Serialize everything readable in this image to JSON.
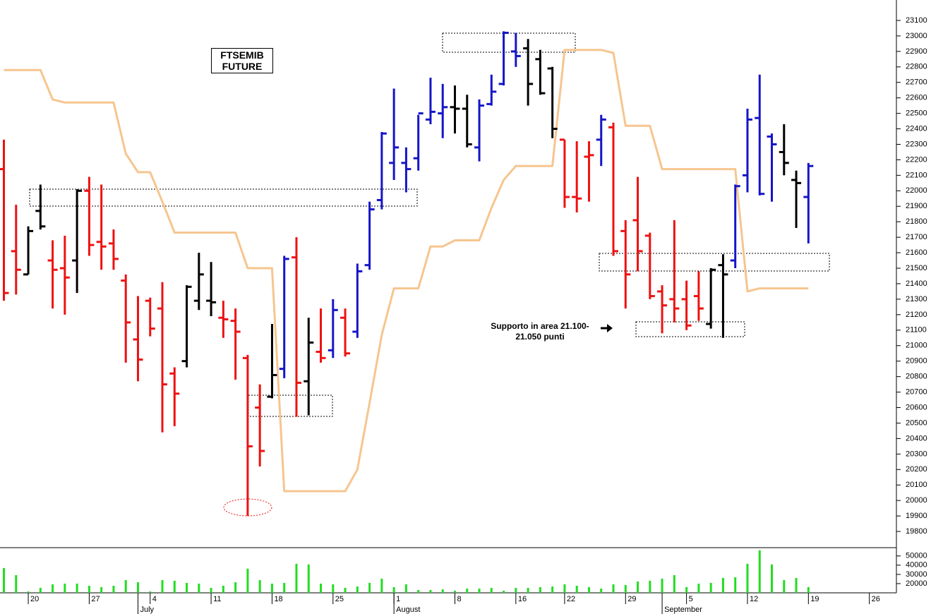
{
  "chart_data": [
    {
      "type": "ohlc",
      "title": "FTSEMIB FUTURE",
      "annotation": "Supporto in area 21.100-21.050 punti",
      "categories": [
        null,
        null,
        "20",
        null,
        null,
        null,
        null,
        "27",
        null,
        null,
        null,
        null,
        "4",
        null,
        null,
        null,
        null,
        "11",
        null,
        null,
        null,
        null,
        "18",
        null,
        null,
        null,
        null,
        "25",
        null,
        null,
        null,
        null,
        "1",
        null,
        null,
        null,
        null,
        "8",
        null,
        null,
        null,
        null,
        "16",
        null,
        null,
        null,
        "22",
        null,
        null,
        null,
        null,
        "29",
        null,
        null,
        null,
        null,
        "5",
        null,
        null,
        null,
        null,
        "12",
        null,
        null,
        null,
        null,
        "19",
        null,
        null,
        null,
        null,
        "26",
        null,
        null
      ],
      "months": [
        null,
        null,
        null,
        null,
        null,
        null,
        null,
        null,
        null,
        null,
        null,
        "July",
        null,
        null,
        null,
        null,
        null,
        null,
        null,
        null,
        null,
        null,
        null,
        null,
        null,
        null,
        null,
        null,
        null,
        null,
        null,
        null,
        "August",
        null,
        null,
        null,
        null,
        null,
        null,
        null,
        null,
        null,
        null,
        null,
        null,
        null,
        null,
        null,
        null,
        null,
        null,
        null,
        null,
        null,
        "September",
        null,
        null,
        null,
        null,
        null,
        null,
        null,
        null,
        null,
        null,
        null,
        null,
        null,
        null,
        null,
        null,
        null,
        null,
        null
      ],
      "open": [
        22140,
        21610,
        21460,
        21870,
        21550,
        21500,
        21550,
        22000,
        21670,
        21660,
        21420,
        21040,
        21290,
        21240,
        20820,
        20900,
        21290,
        21290,
        21180,
        21160,
        20920,
        20600,
        20670,
        20850,
        21570,
        20770,
        20960,
        20970,
        21180,
        21090,
        21520,
        21940,
        22180,
        22180,
        22210,
        22460,
        22500,
        22540,
        22530,
        22280,
        22560,
        22690,
        22900,
        22920,
        22850,
        22790,
        22330,
        21960,
        22220,
        22330,
        22410,
        21740,
        21810,
        21710,
        21350,
        21300,
        21300,
        21320,
        21140,
        21520,
        21550,
        22100,
        22470,
        22350,
        22250,
        22070,
        21960,
        null,
        null,
        null,
        null,
        null,
        null,
        null
      ],
      "high": [
        22330,
        21910,
        21770,
        22040,
        21680,
        21710,
        22010,
        22090,
        22040,
        21750,
        21460,
        21320,
        21310,
        21410,
        20860,
        21390,
        21600,
        21540,
        21290,
        21240,
        20940,
        20750,
        21140,
        21580,
        21700,
        21180,
        21240,
        21300,
        21240,
        21530,
        21930,
        22380,
        22660,
        22280,
        22490,
        22730,
        22690,
        22680,
        22620,
        22590,
        22750,
        23030,
        23020,
        22980,
        22910,
        22800,
        22330,
        22320,
        22320,
        22490,
        22440,
        21810,
        22090,
        21730,
        21390,
        21810,
        21420,
        21480,
        21500,
        21590,
        22040,
        22530,
        22750,
        22370,
        22430,
        22130,
        22180,
        null,
        null,
        null,
        null,
        null,
        null,
        null
      ],
      "low": [
        21290,
        21330,
        21460,
        21750,
        21240,
        21200,
        21340,
        21580,
        21490,
        21490,
        20890,
        20770,
        21060,
        20440,
        20480,
        20860,
        21230,
        21190,
        21050,
        20780,
        19900,
        20220,
        20660,
        20790,
        20540,
        20550,
        20890,
        20920,
        20930,
        21050,
        21490,
        21880,
        22070,
        21990,
        22130,
        22430,
        22340,
        22370,
        22280,
        22190,
        22550,
        22680,
        22800,
        22550,
        22620,
        22340,
        21890,
        21860,
        21930,
        22160,
        21580,
        21240,
        21480,
        21300,
        21080,
        21150,
        21100,
        21160,
        21110,
        21050,
        21500,
        21990,
        21970,
        21930,
        22100,
        21760,
        21660,
        null,
        null,
        null,
        null,
        null,
        null,
        null
      ],
      "close": [
        21340,
        21490,
        21740,
        21770,
        21490,
        21440,
        22000,
        21650,
        21640,
        21560,
        21150,
        20910,
        21110,
        20750,
        20690,
        21380,
        21460,
        21280,
        21170,
        21090,
        20350,
        20320,
        20810,
        21560,
        20760,
        21020,
        20920,
        21230,
        20950,
        21480,
        21880,
        22370,
        22280,
        22140,
        22500,
        22510,
        22540,
        22530,
        22300,
        22550,
        22640,
        23020,
        22870,
        22690,
        22630,
        22400,
        21960,
        21950,
        22230,
        22460,
        21610,
        21460,
        21610,
        21320,
        21260,
        21240,
        21130,
        21240,
        21490,
        21460,
        22030,
        22460,
        21980,
        22300,
        22180,
        22050,
        22160,
        null,
        null,
        null,
        null,
        null,
        null,
        null
      ],
      "bar_colors": [
        "#ee1111",
        "#ee1111",
        "#000000",
        "#000000",
        "#ee1111",
        "#ee1111",
        "#000000",
        "#ee1111",
        "#ee1111",
        "#ee1111",
        "#ee1111",
        "#ee1111",
        "#ee1111",
        "#ee1111",
        "#ee1111",
        "#000000",
        "#000000",
        "#000000",
        "#ee1111",
        "#ee1111",
        "#ee1111",
        "#ee1111",
        "#000000",
        "#1515c8",
        "#ee1111",
        "#000000",
        "#ee1111",
        "#1515c8",
        "#ee1111",
        "#1515c8",
        "#1515c8",
        "#1515c8",
        "#1515c8",
        "#1515c8",
        "#1515c8",
        "#1515c8",
        "#1515c8",
        "#000000",
        "#000000",
        "#1515c8",
        "#1515c8",
        "#1515c8",
        "#1515c8",
        "#000000",
        "#000000",
        "#000000",
        "#ee1111",
        "#ee1111",
        "#ee1111",
        "#1515c8",
        "#ee1111",
        "#ee1111",
        "#ee1111",
        "#ee1111",
        "#ee1111",
        "#ee1111",
        "#ee1111",
        "#ee1111",
        "#000000",
        "#000000",
        "#1515c8",
        "#1515c8",
        "#1515c8",
        "#1515c8",
        "#000000",
        "#000000",
        "#1515c8",
        null,
        null,
        null,
        null,
        null,
        null,
        null
      ],
      "overlay": {
        "color": "#f6c58f",
        "values": [
          22780,
          22780,
          22780,
          22780,
          22590,
          22570,
          22570,
          22570,
          22570,
          22570,
          22240,
          22120,
          22120,
          21930,
          21730,
          21730,
          21730,
          21730,
          21730,
          21730,
          21500,
          21500,
          21500,
          20060,
          20060,
          20060,
          20060,
          20060,
          20060,
          20200,
          20630,
          21070,
          21370,
          21370,
          21370,
          21640,
          21640,
          21680,
          21680,
          21680,
          21890,
          22070,
          22160,
          22160,
          22160,
          22160,
          22910,
          22910,
          22910,
          22910,
          22890,
          22420,
          22420,
          22420,
          22140,
          22140,
          22140,
          22140,
          22140,
          22140,
          22140,
          21350,
          21370,
          21370,
          21370,
          21370,
          21370,
          null,
          null,
          null,
          null,
          null,
          null,
          null
        ]
      },
      "ylim": [
        19700,
        23232
      ],
      "yticks": [
        19800,
        19900,
        20000,
        20100,
        20200,
        20300,
        20400,
        20500,
        20600,
        20700,
        20800,
        20900,
        21000,
        21100,
        21200,
        21300,
        21400,
        21500,
        21600,
        21700,
        21800,
        21900,
        22000,
        22100,
        22200,
        22300,
        22400,
        22500,
        22600,
        22700,
        22800,
        22900,
        23000,
        23100
      ]
    },
    {
      "type": "bar",
      "color": "#22dd22",
      "values": [
        36900,
        29200,
        11500,
        15400,
        19200,
        20000,
        20000,
        17700,
        16200,
        17700,
        23800,
        21500,
        11500,
        23800,
        23100,
        20800,
        20000,
        15400,
        17700,
        21500,
        36200,
        23800,
        20000,
        20800,
        41500,
        40800,
        20000,
        19200,
        15400,
        16900,
        20800,
        25400,
        16200,
        19200,
        13100,
        13100,
        13800,
        12300,
        14600,
        14600,
        15400,
        12300,
        15400,
        15400,
        16200,
        16900,
        19200,
        17700,
        16200,
        14600,
        19200,
        18500,
        22300,
        23100,
        25400,
        29200,
        16200,
        20000,
        20800,
        26200,
        26900,
        41500,
        56200,
        40800,
        23800,
        26200,
        16200,
        null,
        null,
        null,
        null,
        null,
        null,
        null
      ],
      "ylim": [
        10000,
        59000
      ],
      "yticks": [
        20000,
        30000,
        40000,
        50000
      ]
    }
  ]
}
